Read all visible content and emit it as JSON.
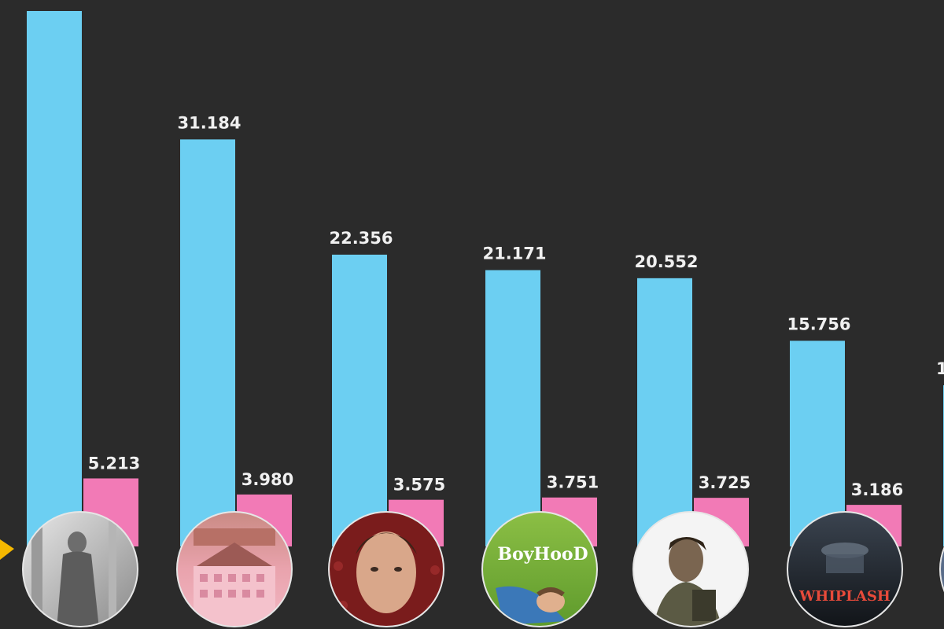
{
  "chart_data": {
    "type": "bar",
    "categories": [
      "",
      "",
      "",
      "",
      "",
      "",
      ""
    ],
    "series": [
      {
        "values": [
          null,
          31.184,
          22.356,
          21.171,
          20.552,
          15.756,
          null
        ]
      },
      {
        "values": [
          5.213,
          3.98,
          3.575,
          3.751,
          3.725,
          3.186,
          null
        ]
      }
    ],
    "value_labels": {
      "primary": [
        "",
        "31.184",
        "22.356",
        "21.171",
        "20.552",
        "15.756",
        "1"
      ],
      "secondary": [
        "5.213",
        "3.980",
        "3.575",
        "3.751",
        "3.725",
        "3.186",
        ""
      ]
    },
    "ylim": [
      0,
      45
    ],
    "grid": false,
    "legend": "none",
    "colors": {
      "background": "#2b2b2b",
      "primary": "#6ccff2",
      "secondary": "#f27ab6",
      "label": "#f0f0f0",
      "accent_arrow": "#f5b800"
    }
  },
  "posters": [
    {
      "icon": "black-and-white-figure-poster",
      "text": ""
    },
    {
      "icon": "pink-hotel-poster",
      "text": ""
    },
    {
      "icon": "portrait-man-poster",
      "text": ""
    },
    {
      "icon": "green-grass-boy-poster",
      "text": "BoyHooD"
    },
    {
      "icon": "soldier-portrait-poster",
      "text": ""
    },
    {
      "icon": "dark-drummer-poster",
      "text": "WHIPLASH"
    },
    {
      "icon": "partial-poster",
      "text": ""
    }
  ]
}
